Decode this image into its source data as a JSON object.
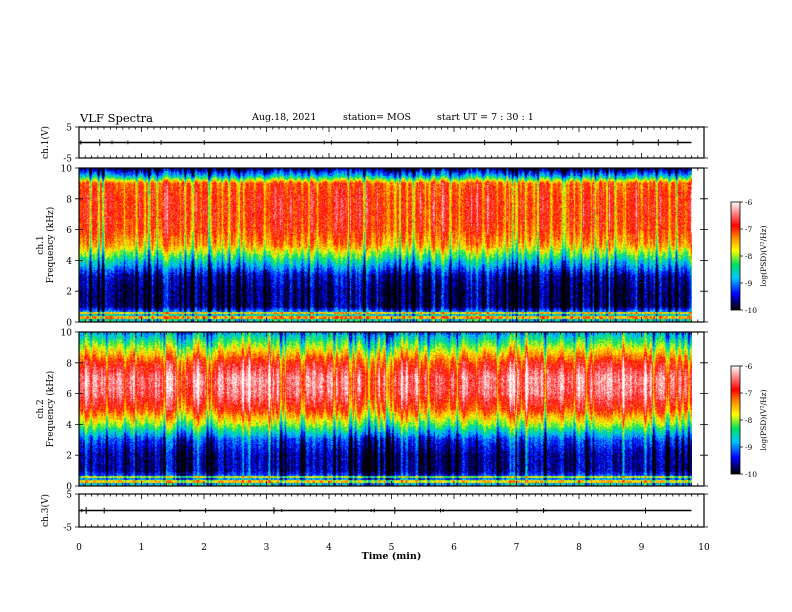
{
  "header": {
    "title": "VLF Spectra",
    "date": "Aug.18, 2021",
    "station": "station= MOS",
    "start": "start  UT =   7 : 30 : 1"
  },
  "chart_data": [
    {
      "type": "line",
      "name": "ch.1(V)",
      "ylabel": "ch.1(V)",
      "ylim": [
        -5,
        5
      ],
      "yticks": [
        -5,
        5
      ],
      "xlim": [
        0,
        10
      ],
      "series": [
        {
          "x": [
            0,
            9.8
          ],
          "y": [
            0,
            0
          ]
        }
      ]
    },
    {
      "type": "heatmap",
      "name": "ch.1",
      "ylabel": "ch.1\nFrequency (kHz)",
      "ylim": [
        0,
        10
      ],
      "yticks": [
        0,
        2,
        4,
        6,
        8,
        10
      ],
      "xlim": [
        0,
        10
      ],
      "data_end_min": 9.8,
      "spectrum_profile_kHz_log10": [
        [
          0.2,
          -8.5
        ],
        [
          0.5,
          -8.6
        ],
        [
          1.0,
          -9.7
        ],
        [
          2.0,
          -9.7
        ],
        [
          3.0,
          -9.5
        ],
        [
          4.0,
          -8.5
        ],
        [
          5.0,
          -7.4
        ],
        [
          6.0,
          -7.0
        ],
        [
          7.0,
          -6.9
        ],
        [
          8.0,
          -6.9
        ],
        [
          9.0,
          -7.1
        ],
        [
          9.5,
          -8.8
        ],
        [
          10.0,
          -9.8
        ]
      ],
      "colorbar": {
        "label": "log(PSD)(V²/Hz)",
        "range": [
          -10,
          -6
        ],
        "ticks": [
          -10,
          -9,
          -8,
          -7,
          -6
        ]
      }
    },
    {
      "type": "heatmap",
      "name": "ch.2",
      "ylabel": "ch.2\nFrequency (kHz)",
      "ylim": [
        0,
        10
      ],
      "yticks": [
        0,
        2,
        4,
        6,
        8,
        10
      ],
      "xlim": [
        0,
        10
      ],
      "data_end_min": 9.8,
      "spectrum_profile_kHz_log10": [
        [
          0.2,
          -8.7
        ],
        [
          1.0,
          -9.6
        ],
        [
          2.0,
          -9.6
        ],
        [
          3.0,
          -9.2
        ],
        [
          4.0,
          -8.0
        ],
        [
          5.0,
          -7.0
        ],
        [
          6.0,
          -6.5
        ],
        [
          7.0,
          -6.4
        ],
        [
          8.0,
          -6.9
        ],
        [
          9.0,
          -7.9
        ],
        [
          10.0,
          -8.9
        ]
      ],
      "colorbar": {
        "label": "log(PSD)(V²/Hz)",
        "range": [
          -10,
          -6
        ],
        "ticks": [
          -10,
          -9,
          -8,
          -7,
          -6
        ]
      }
    },
    {
      "type": "line",
      "name": "ch.3(V)",
      "ylabel": "ch.3(V)",
      "ylim": [
        -5,
        5
      ],
      "yticks": [
        -5,
        5
      ],
      "xlim": [
        0,
        10
      ],
      "xticks": [
        0,
        1,
        2,
        3,
        4,
        5,
        6,
        7,
        8,
        9,
        10
      ],
      "xlabel": "Time  (min)",
      "series": [
        {
          "x": [
            0,
            9.8
          ],
          "y": [
            0,
            0
          ]
        }
      ]
    }
  ]
}
